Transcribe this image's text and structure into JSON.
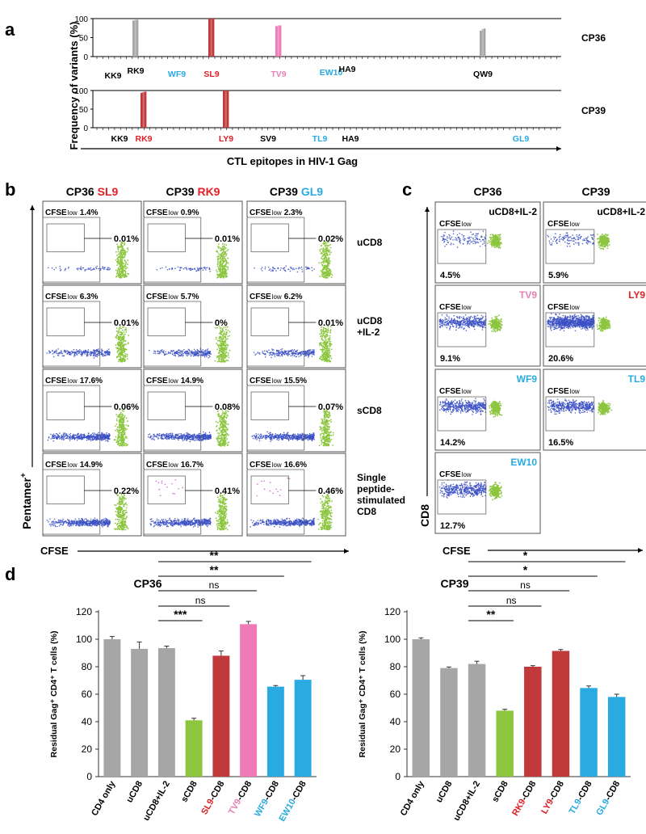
{
  "colors": {
    "gray": "#a6a6a6",
    "red": "#c0393b",
    "pink": "#f07ab8",
    "blue": "#29abe2",
    "green": "#8cc63f",
    "dot_blue": "#3a4fc4",
    "text_red": "#e21e25",
    "text_pink": "#e681b6",
    "text_blue": "#27aae1"
  },
  "panel_a": {
    "letter": "a",
    "ylabel": "Frequency of variants (%)",
    "xlabel": "CTL epitopes in HIV-1 Gag",
    "ticks": [
      "100",
      "50",
      "0"
    ],
    "tracks": [
      {
        "name": "CP36",
        "epitopes": [
          {
            "label": "KK9",
            "color": "black"
          },
          {
            "label": "RK9",
            "color": "black"
          },
          {
            "label": "WF9",
            "color": "blue"
          },
          {
            "label": "SL9",
            "color": "red"
          },
          {
            "label": "TV9",
            "color": "pink"
          },
          {
            "label": "EW10",
            "color": "blue"
          },
          {
            "label": "HA9",
            "color": "black"
          },
          {
            "label": "QW9",
            "color": "black"
          }
        ],
        "variants": [
          {
            "epitope": "RK9",
            "values": [
              95,
              97,
              97
            ],
            "color": "gray"
          },
          {
            "epitope": "SL9",
            "values": [
              100,
              100,
              100
            ],
            "color": "red"
          },
          {
            "epitope": "TV9",
            "values": [
              80,
              82,
              82
            ],
            "color": "pink"
          },
          {
            "epitope": "QW9",
            "values": [
              68,
              72,
              74
            ],
            "color": "gray"
          }
        ]
      },
      {
        "name": "CP39",
        "epitopes": [
          {
            "label": "KK9",
            "color": "black"
          },
          {
            "label": "RK9",
            "color": "red"
          },
          {
            "label": "LY9",
            "color": "red"
          },
          {
            "label": "SV9",
            "color": "black"
          },
          {
            "label": "TL9",
            "color": "blue"
          },
          {
            "label": "HA9",
            "color": "black"
          },
          {
            "label": "GL9",
            "color": "blue"
          }
        ],
        "variants": [
          {
            "epitope": "RK9",
            "values": [
              94,
              96,
              97
            ],
            "color": "red"
          },
          {
            "epitope": "LY9",
            "values": [
              100,
              100,
              100
            ],
            "color": "red"
          }
        ]
      }
    ]
  },
  "panel_b": {
    "letter": "b",
    "columns": [
      {
        "prefix": "CP36",
        "epitope": "SL9",
        "color": "red"
      },
      {
        "prefix": "CP39",
        "epitope": "RK9",
        "color": "red"
      },
      {
        "prefix": "CP39",
        "epitope": "GL9",
        "color": "blue"
      }
    ],
    "rows": [
      {
        "label_lines": [
          "uCD8"
        ],
        "cfse_low": [
          "1.4%",
          "0.9%",
          "2.3%"
        ],
        "gate": [
          "0.01%",
          "0.01%",
          "0.02%"
        ]
      },
      {
        "label_lines": [
          "uCD8",
          "+IL-2"
        ],
        "cfse_low": [
          "6.3%",
          "5.7%",
          "6.2%"
        ],
        "gate": [
          "0.01%",
          "0%",
          "0.01%"
        ]
      },
      {
        "label_lines": [
          "sCD8"
        ],
        "cfse_low": [
          "17.6%",
          "14.9%",
          "15.5%"
        ],
        "gate": [
          "0.06%",
          "0.08%",
          "0.07%"
        ]
      },
      {
        "label_lines": [
          "Single",
          "peptide-",
          "stimulated",
          "CD8"
        ],
        "cfse_low": [
          "14.9%",
          "16.7%",
          "16.6%"
        ],
        "gate": [
          "0.22%",
          "0.41%",
          "0.46%"
        ]
      }
    ],
    "cfse_word": "CFSE",
    "low_word": "low",
    "ylabel": "Pentamer",
    "ylabel_sup": "+",
    "xlabel": "CFSE"
  },
  "panel_c": {
    "letter": "c",
    "columns": [
      "CP36",
      "CP39"
    ],
    "cells": [
      {
        "row": 0,
        "col": 0,
        "label": "uCD8+IL-2",
        "color": "black",
        "value": "4.5%",
        "density": "low"
      },
      {
        "row": 0,
        "col": 1,
        "label": "uCD8+IL-2",
        "color": "black",
        "value": "5.9%",
        "density": "low"
      },
      {
        "row": 1,
        "col": 0,
        "label": "TV9",
        "color": "pink",
        "value": "9.1%",
        "density": "mid"
      },
      {
        "row": 1,
        "col": 1,
        "label": "LY9",
        "color": "red",
        "value": "20.6%",
        "density": "high"
      },
      {
        "row": 2,
        "col": 0,
        "label": "WF9",
        "color": "blue",
        "value": "14.2%",
        "density": "mid"
      },
      {
        "row": 2,
        "col": 1,
        "label": "TL9",
        "color": "blue",
        "value": "16.5%",
        "density": "mid"
      },
      {
        "row": 3,
        "col": 0,
        "label": "EW10",
        "color": "blue",
        "value": "12.7%",
        "density": "mid"
      }
    ],
    "gate_label": "CFSE",
    "gate_sub": "low",
    "ylabel": "CD8",
    "xlabel": "CFSE"
  },
  "panel_d": {
    "letter": "d"
  },
  "chart_data": [
    {
      "type": "bar",
      "title": "CP36",
      "ylabel": "Residual Gag⁺ CD4⁺ T cells (%)",
      "ylim": [
        0,
        120
      ],
      "yticks": [
        "0",
        "20",
        "40",
        "60",
        "80",
        "100",
        "120"
      ],
      "categories": [
        {
          "main": "CD4 only",
          "suffix": "",
          "label_color": "black",
          "bar_color": "gray"
        },
        {
          "main": "uCD8",
          "suffix": "",
          "label_color": "black",
          "bar_color": "gray"
        },
        {
          "main": "uCD8+IL-2",
          "suffix": "",
          "label_color": "black",
          "bar_color": "gray"
        },
        {
          "main": "sCD8",
          "suffix": "",
          "label_color": "black",
          "bar_color": "green"
        },
        {
          "main": "SL9",
          "suffix": "-CD8",
          "label_color": "red",
          "bar_color": "red"
        },
        {
          "main": "TV9",
          "suffix": "-CD8",
          "label_color": "pink",
          "bar_color": "pink"
        },
        {
          "main": "WF9",
          "suffix": "-CD8",
          "label_color": "blue",
          "bar_color": "blue"
        },
        {
          "main": "EW10",
          "suffix": "-CD8",
          "label_color": "blue",
          "bar_color": "blue"
        }
      ],
      "values": [
        100,
        93,
        93.5,
        41,
        88,
        111,
        65.5,
        70.5
      ],
      "errors": [
        2,
        5,
        1.5,
        1.5,
        3.5,
        2,
        0.8,
        3
      ],
      "significance": [
        {
          "from": 2,
          "to": 3,
          "label": "***"
        },
        {
          "from": 2,
          "to": 4,
          "label": "ns"
        },
        {
          "from": 2,
          "to": 5,
          "label": "ns"
        },
        {
          "from": 2,
          "to": 6,
          "label": "**"
        },
        {
          "from": 2,
          "to": 7,
          "label": "**"
        }
      ]
    },
    {
      "type": "bar",
      "title": "CP39",
      "ylabel": "Residual Gag⁺ CD4⁺ T cells (%)",
      "ylim": [
        0,
        120
      ],
      "yticks": [
        "0",
        "20",
        "40",
        "60",
        "80",
        "100",
        "120"
      ],
      "categories": [
        {
          "main": "CD4 only",
          "suffix": "",
          "label_color": "black",
          "bar_color": "gray"
        },
        {
          "main": "uCD8",
          "suffix": "",
          "label_color": "black",
          "bar_color": "gray"
        },
        {
          "main": "uCD8+IL-2",
          "suffix": "",
          "label_color": "black",
          "bar_color": "gray"
        },
        {
          "main": "sCD8",
          "suffix": "",
          "label_color": "black",
          "bar_color": "green"
        },
        {
          "main": "RK9",
          "suffix": "-CD8",
          "label_color": "red",
          "bar_color": "red"
        },
        {
          "main": "LY9",
          "suffix": "-CD8",
          "label_color": "red",
          "bar_color": "red"
        },
        {
          "main": "TL9",
          "suffix": "-CD8",
          "label_color": "blue",
          "bar_color": "blue"
        },
        {
          "main": "GL9",
          "suffix": "-CD8",
          "label_color": "blue",
          "bar_color": "blue"
        }
      ],
      "values": [
        100,
        79,
        82,
        48,
        80,
        91.5,
        64.5,
        58
      ],
      "errors": [
        1,
        0.8,
        2,
        1,
        0.8,
        1,
        1.5,
        2
      ],
      "significance": [
        {
          "from": 2,
          "to": 3,
          "label": "**"
        },
        {
          "from": 2,
          "to": 4,
          "label": "ns"
        },
        {
          "from": 2,
          "to": 5,
          "label": "ns"
        },
        {
          "from": 2,
          "to": 6,
          "label": "*"
        },
        {
          "from": 2,
          "to": 7,
          "label": "*"
        }
      ]
    }
  ]
}
